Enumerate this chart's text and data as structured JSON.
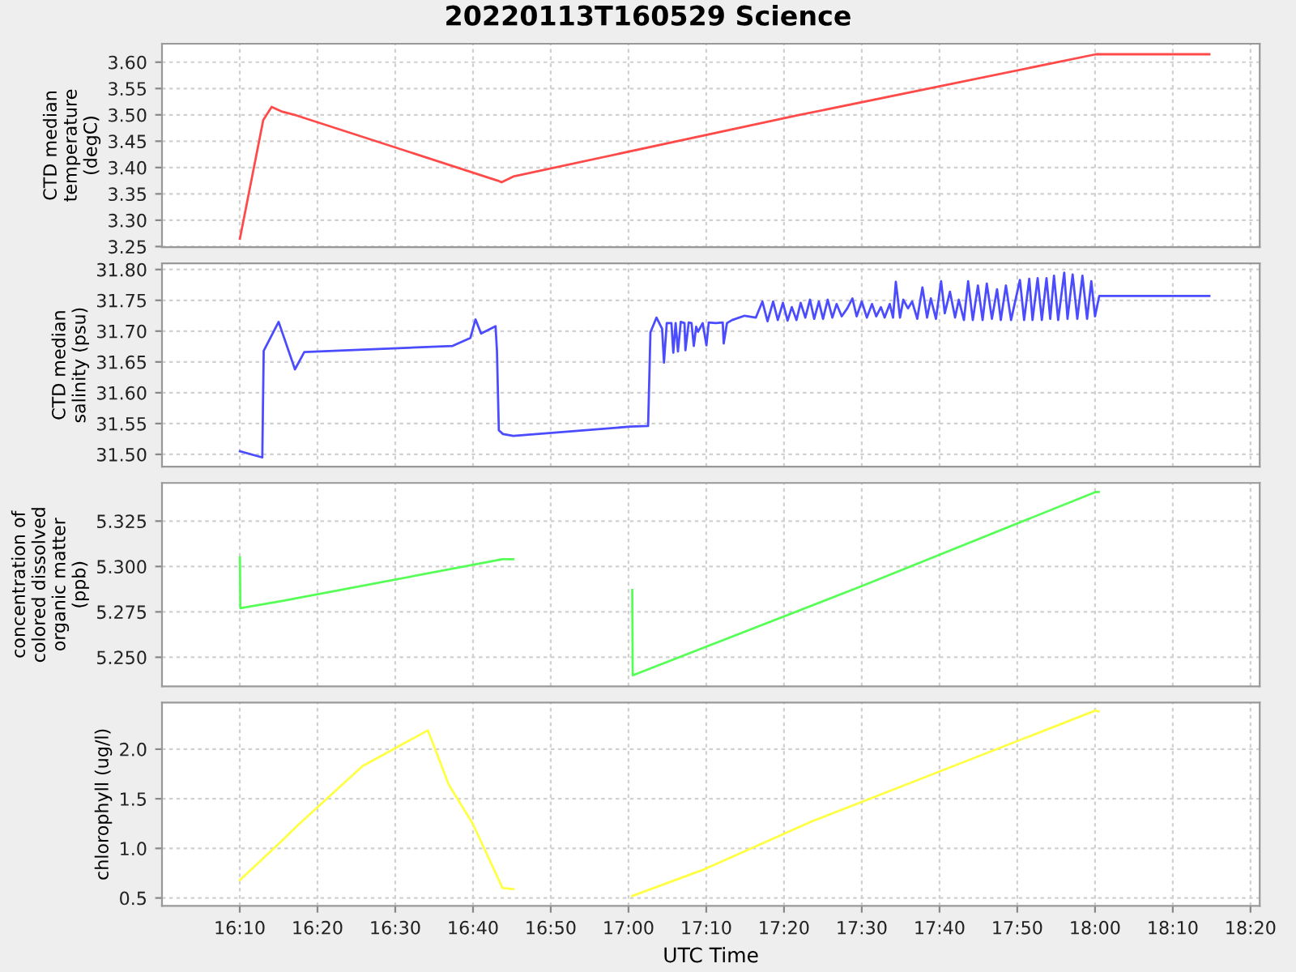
{
  "chart_data": [
    {
      "type": "line",
      "title": "20220113T160529 Science",
      "ylabel": "CTD median temperature (degC)",
      "grid": true,
      "tick_labels": "y",
      "xlim": [
        16.0,
        18.353
      ],
      "xticks": [
        {
          "value": 16.1667,
          "label": null
        },
        {
          "value": 16.3333,
          "label": null
        },
        {
          "value": 16.5,
          "label": null
        },
        {
          "value": 16.6667,
          "label": null
        },
        {
          "value": 16.8333,
          "label": null
        },
        {
          "value": 17,
          "label": null
        },
        {
          "value": 17.1667,
          "label": null
        },
        {
          "value": 17.3333,
          "label": null
        },
        {
          "value": 17.5,
          "label": null
        },
        {
          "value": 17.6667,
          "label": null
        },
        {
          "value": 17.8333,
          "label": null
        },
        {
          "value": 18,
          "label": null
        },
        {
          "value": 18.1667,
          "label": null
        },
        {
          "value": 18.3333,
          "label": null
        }
      ],
      "ylim": [
        3.249,
        3.635
      ],
      "yticks": [
        3.25,
        {
          "value": 3.3,
          "label": "3.30"
        },
        3.35,
        {
          "value": 3.4,
          "label": "3.40"
        },
        3.45,
        {
          "value": 3.5,
          "label": "3.50"
        },
        3.55,
        {
          "value": 3.6,
          "label": "3.60"
        }
      ],
      "series": [
        {
          "color": "#ff4a4a",
          "x": [
            16.167,
            16.217,
            16.235,
            16.258,
            16.288,
            16.72,
            16.728,
            16.753,
            17.362,
            18.002,
            18.245
          ],
          "values": [
            3.265,
            3.49,
            3.515,
            3.506,
            3.499,
            3.375,
            3.372,
            3.383,
            3.499,
            3.615,
            3.615
          ]
        }
      ]
    },
    {
      "type": "line",
      "ylabel": "CTD median salinity (psu)",
      "grid": true,
      "tick_labels": "y",
      "xlim": [
        16.0,
        18.353
      ],
      "xticks": [
        {
          "value": 16.1667,
          "label": null
        },
        {
          "value": 16.3333,
          "label": null
        },
        {
          "value": 16.5,
          "label": null
        },
        {
          "value": 16.6667,
          "label": null
        },
        {
          "value": 16.8333,
          "label": null
        },
        {
          "value": 17,
          "label": null
        },
        {
          "value": 17.1667,
          "label": null
        },
        {
          "value": 17.3333,
          "label": null
        },
        {
          "value": 17.5,
          "label": null
        },
        {
          "value": 17.6667,
          "label": null
        },
        {
          "value": 17.8333,
          "label": null
        },
        {
          "value": 18,
          "label": null
        },
        {
          "value": 18.1667,
          "label": null
        },
        {
          "value": 18.3333,
          "label": null
        }
      ],
      "ylim": [
        31.48,
        31.81
      ],
      "yticks": [
        {
          "value": 31.5,
          "label": "31.50"
        },
        31.55,
        {
          "value": 31.6,
          "label": "31.60"
        },
        31.65,
        {
          "value": 31.7,
          "label": "31.70"
        },
        31.75,
        {
          "value": 31.8,
          "label": "31.80"
        }
      ],
      "series": [
        {
          "color": "#4c4cff",
          "x": [
            16.167,
            16.215,
            16.218,
            16.25,
            16.285,
            16.305,
            16.623,
            16.661,
            16.672,
            16.684,
            16.715,
            16.718,
            16.722,
            16.731,
            16.753,
            17.004,
            17.042,
            17.047,
            17.06,
            17.072,
            17.076,
            17.082,
            17.092,
            17.096,
            17.101,
            17.106,
            17.112,
            17.12,
            17.122,
            17.129,
            17.135,
            17.14,
            17.145,
            17.149,
            17.159,
            17.167,
            17.172,
            17.187,
            17.202,
            17.204,
            17.211,
            17.222,
            17.249,
            17.273,
            17.287,
            17.298,
            17.31,
            17.32,
            17.331,
            17.341,
            17.35,
            17.36,
            17.369,
            17.379,
            17.389,
            17.398,
            17.408,
            17.417,
            17.427,
            17.437,
            17.446,
            17.457,
            17.469,
            17.48,
            17.489,
            17.5,
            17.511,
            17.522,
            17.531,
            17.541,
            17.549,
            17.56,
            17.567,
            17.573,
            17.582,
            17.589,
            17.599,
            17.608,
            17.619,
            17.63,
            17.64,
            17.648,
            17.659,
            17.67,
            17.678,
            17.689,
            17.7,
            17.708,
            17.719,
            17.728,
            17.738,
            17.749,
            17.759,
            17.768,
            17.779,
            17.79,
            17.798,
            17.809,
            17.82,
            17.839,
            17.848,
            17.859,
            17.866,
            17.877,
            17.886,
            17.896,
            17.904,
            17.912,
            17.921,
            17.934,
            17.941,
            17.952,
            17.962,
            17.973,
            17.983,
            17.992,
            18.0,
            18.009,
            18.245
          ],
          "values": [
            31.505,
            31.495,
            31.668,
            31.715,
            31.638,
            31.666,
            31.676,
            31.689,
            31.719,
            31.696,
            31.708,
            31.668,
            31.539,
            31.533,
            31.53,
            31.545,
            31.546,
            31.698,
            31.722,
            31.704,
            31.649,
            31.713,
            31.713,
            31.665,
            31.713,
            31.667,
            31.715,
            31.713,
            31.669,
            31.714,
            31.713,
            31.676,
            31.707,
            31.699,
            31.713,
            31.677,
            31.714,
            31.713,
            31.714,
            31.68,
            31.713,
            31.718,
            31.725,
            31.722,
            31.748,
            31.716,
            31.748,
            31.718,
            31.746,
            31.717,
            31.739,
            31.718,
            31.746,
            31.722,
            31.751,
            31.72,
            31.748,
            31.72,
            31.751,
            31.722,
            31.744,
            31.724,
            31.737,
            31.753,
            31.724,
            31.748,
            31.722,
            31.744,
            31.724,
            31.739,
            31.722,
            31.744,
            31.722,
            31.78,
            31.722,
            31.751,
            31.737,
            31.748,
            31.72,
            31.771,
            31.722,
            31.753,
            31.72,
            31.781,
            31.729,
            31.764,
            31.722,
            31.751,
            31.718,
            31.781,
            31.718,
            31.774,
            31.718,
            31.777,
            31.72,
            31.768,
            31.718,
            31.774,
            31.718,
            31.783,
            31.718,
            31.785,
            31.718,
            31.786,
            31.718,
            31.786,
            31.72,
            31.79,
            31.718,
            31.795,
            31.72,
            31.792,
            31.72,
            31.79,
            31.72,
            31.781,
            31.724,
            31.757,
            31.757
          ]
        }
      ]
    },
    {
      "type": "line",
      "ylabel": "concentration of colored dissolved organic matter (ppb)",
      "grid": true,
      "tick_labels": "y",
      "xlim": [
        16.0,
        18.353
      ],
      "xticks": [
        {
          "value": 16.1667,
          "label": null
        },
        {
          "value": 16.3333,
          "label": null
        },
        {
          "value": 16.5,
          "label": null
        },
        {
          "value": 16.6667,
          "label": null
        },
        {
          "value": 16.8333,
          "label": null
        },
        {
          "value": 17,
          "label": null
        },
        {
          "value": 17.1667,
          "label": null
        },
        {
          "value": 17.3333,
          "label": null
        },
        {
          "value": 17.5,
          "label": null
        },
        {
          "value": 17.6667,
          "label": null
        },
        {
          "value": 17.8333,
          "label": null
        },
        {
          "value": 18,
          "label": null
        },
        {
          "value": 18.1667,
          "label": null
        },
        {
          "value": 18.3333,
          "label": null
        }
      ],
      "ylim": [
        5.234,
        5.346
      ],
      "yticks": [
        {
          "value": 5.25,
          "label": "5.250"
        },
        5.275,
        {
          "value": 5.3,
          "label": "5.300"
        },
        5.325
      ],
      "series": [
        {
          "color": "#55ff55",
          "x": [
            16.167,
            16.168,
            16.19,
            16.258,
            16.73,
            16.753,
            16.9,
            17.008,
            17.009,
            17.498,
            18.001,
            18.008
          ],
          "values": [
            5.305,
            5.277,
            5.278,
            5.281,
            5.304,
            5.304,
            null,
            5.287,
            5.24,
            5.289,
            5.341,
            5.341
          ]
        }
      ]
    },
    {
      "type": "line",
      "ylabel": "chlorophyll (ug/l)",
      "xlabel": "UTC Time",
      "grid": true,
      "xlim": [
        16.0,
        18.353
      ],
      "xticks": [
        {
          "value": 16.1667,
          "label": "16:10"
        },
        {
          "value": 16.3333,
          "label": "16:20"
        },
        {
          "value": 16.5,
          "label": "16:30"
        },
        {
          "value": 16.6667,
          "label": "16:40"
        },
        {
          "value": 16.8333,
          "label": "16:50"
        },
        {
          "value": 17,
          "label": "17:00"
        },
        {
          "value": 17.1667,
          "label": "17:10"
        },
        {
          "value": 17.3333,
          "label": "17:20"
        },
        {
          "value": 17.5,
          "label": "17:30"
        },
        {
          "value": 17.6667,
          "label": "17:40"
        },
        {
          "value": 17.8333,
          "label": "17:50"
        },
        {
          "value": 18,
          "label": "18:00"
        },
        {
          "value": 18.1667,
          "label": "18:10"
        },
        {
          "value": 18.3333,
          "label": "18:20"
        }
      ],
      "ylim": [
        0.42,
        2.47
      ],
      "yticks": [
        0.5,
        {
          "value": 1,
          "label": "1.0"
        },
        1.5,
        {
          "value": 2,
          "label": "2.0"
        }
      ],
      "series": [
        {
          "color": "#ffff44",
          "x": [
            16.167,
            16.258,
            16.288,
            16.43,
            16.57,
            16.615,
            16.666,
            16.73,
            16.753,
            16.9,
            17.008,
            17.163,
            17.392,
            18.001,
            18.008
          ],
          "values": [
            0.68,
            1.08,
            1.22,
            1.83,
            2.19,
            1.64,
            1.25,
            0.6,
            0.59,
            null,
            0.52,
            0.79,
            1.27,
            2.39,
            2.38
          ]
        }
      ]
    }
  ]
}
